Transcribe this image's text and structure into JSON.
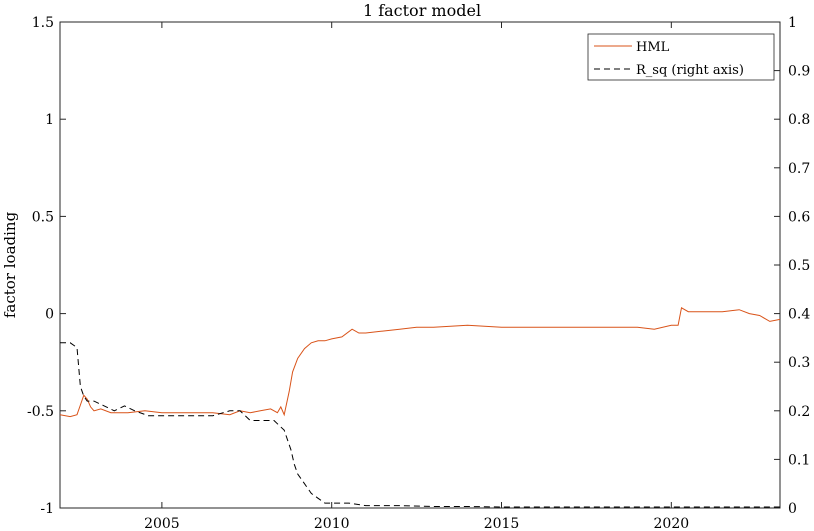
{
  "chart_data": {
    "type": "line",
    "title": "1 factor model",
    "ylabel": "factor loading",
    "ylabel_right": "",
    "xlim": [
      2002.0,
      2023.2
    ],
    "ylim": [
      -1,
      1.5
    ],
    "ylim_right": [
      0,
      1
    ],
    "x_ticks": [
      2005,
      2010,
      2015,
      2020
    ],
    "y_ticks": [
      -1,
      -0.5,
      0,
      0.5,
      1,
      1.5
    ],
    "y_tick_labels": [
      "-1",
      "-0.5",
      "0",
      "0.5",
      "1",
      "1.5"
    ],
    "y_right_ticks": [
      0,
      0.1,
      0.2,
      0.3,
      0.4,
      0.5,
      0.6,
      0.7,
      0.8,
      0.9,
      1
    ],
    "y_right_tick_labels": [
      "0",
      "0.1",
      "0.2",
      "0.3",
      "0.4",
      "0.5",
      "0.6",
      "0.7",
      "0.8",
      "0.9",
      "1"
    ],
    "grid": false,
    "legend_position": "top-right",
    "series": [
      {
        "name": "HML",
        "axis": "left",
        "color": "#d95319",
        "style": "solid",
        "x": [
          2002.0,
          2002.3,
          2002.5,
          2002.6,
          2002.7,
          2002.8,
          2002.9,
          2003.0,
          2003.2,
          2003.5,
          2004.0,
          2004.5,
          2005.0,
          2005.5,
          2006.0,
          2006.5,
          2007.0,
          2007.3,
          2007.6,
          2007.9,
          2008.2,
          2008.4,
          2008.5,
          2008.6,
          2008.75,
          2008.85,
          2009.0,
          2009.2,
          2009.4,
          2009.6,
          2009.8,
          2010.0,
          2010.3,
          2010.6,
          2010.8,
          2011.0,
          2011.5,
          2012.0,
          2012.5,
          2013.0,
          2014.0,
          2015.0,
          2016.0,
          2017.0,
          2018.0,
          2019.0,
          2019.5,
          2020.0,
          2020.2,
          2020.3,
          2020.5,
          2020.8,
          2021.0,
          2021.5,
          2022.0,
          2022.3,
          2022.6,
          2022.9,
          2023.2
        ],
        "values": [
          -0.52,
          -0.53,
          -0.52,
          -0.47,
          -0.42,
          -0.44,
          -0.48,
          -0.5,
          -0.49,
          -0.51,
          -0.51,
          -0.5,
          -0.51,
          -0.51,
          -0.51,
          -0.51,
          -0.52,
          -0.5,
          -0.51,
          -0.5,
          -0.49,
          -0.51,
          -0.48,
          -0.52,
          -0.4,
          -0.3,
          -0.23,
          -0.18,
          -0.15,
          -0.14,
          -0.14,
          -0.13,
          -0.12,
          -0.08,
          -0.1,
          -0.1,
          -0.09,
          -0.08,
          -0.07,
          -0.07,
          -0.06,
          -0.07,
          -0.07,
          -0.07,
          -0.07,
          -0.07,
          -0.08,
          -0.06,
          -0.06,
          0.03,
          0.01,
          0.01,
          0.01,
          0.01,
          0.02,
          0.0,
          -0.01,
          -0.04,
          -0.03
        ]
      },
      {
        "name": "R_sq (right axis)",
        "axis": "right",
        "color": "#000000",
        "style": "dashed",
        "x": [
          2002.0,
          2002.3,
          2002.5,
          2002.6,
          2002.7,
          2002.8,
          2003.0,
          2003.3,
          2003.6,
          2003.9,
          2004.2,
          2004.6,
          2005.0,
          2005.5,
          2006.0,
          2006.5,
          2007.0,
          2007.3,
          2007.6,
          2008.0,
          2008.3,
          2008.6,
          2008.8,
          2008.9,
          2009.0,
          2009.2,
          2009.4,
          2009.6,
          2009.8,
          2010.0,
          2010.5,
          2011.0,
          2012.0,
          2013.0,
          2014.0,
          2015.0,
          2016.0,
          2017.0,
          2018.0,
          2019.0,
          2020.0,
          2021.0,
          2022.0,
          2023.2
        ],
        "values": [
          0.34,
          0.34,
          0.33,
          0.25,
          0.23,
          0.22,
          0.22,
          0.21,
          0.2,
          0.21,
          0.2,
          0.19,
          0.19,
          0.19,
          0.19,
          0.19,
          0.2,
          0.2,
          0.18,
          0.18,
          0.18,
          0.16,
          0.12,
          0.09,
          0.07,
          0.05,
          0.03,
          0.02,
          0.01,
          0.01,
          0.01,
          0.005,
          0.005,
          0.003,
          0.003,
          0.002,
          0.002,
          0.002,
          0.002,
          0.002,
          0.002,
          0.002,
          0.002,
          0.002
        ]
      }
    ]
  }
}
